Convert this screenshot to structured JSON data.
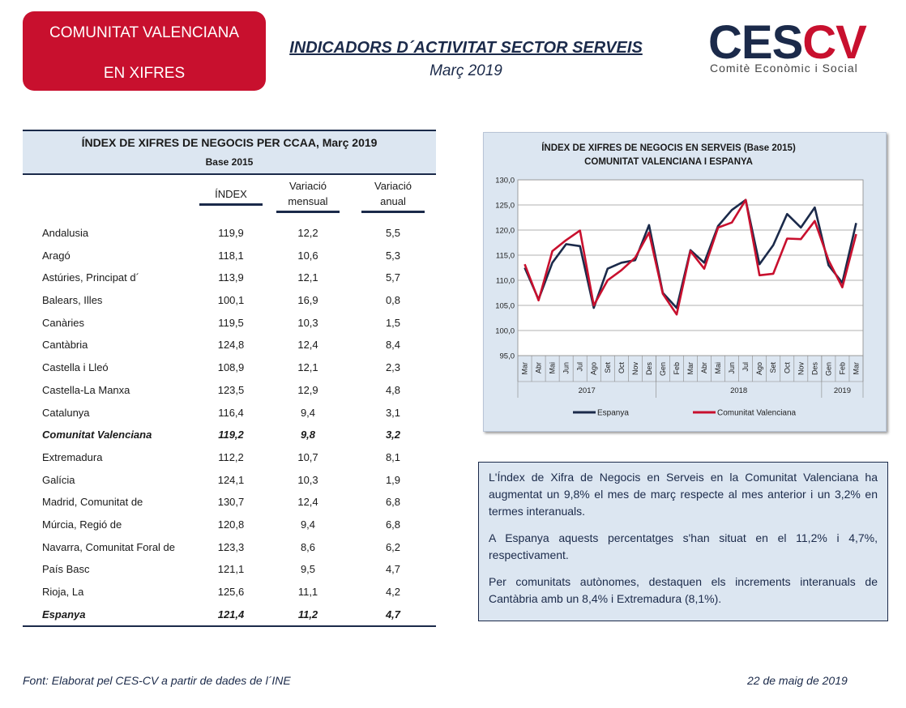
{
  "badge": {
    "line1": "COMUNITAT VALENCIANA",
    "line2": "EN XIFRES"
  },
  "header": {
    "title": "INDICADORS D´ACTIVITAT SECTOR SERVEIS",
    "subtitle": "Març 2019"
  },
  "logo": {
    "ces": "CES",
    "cv": "CV",
    "subtitle": "Comitè Econòmic i Social"
  },
  "table": {
    "title": "ÍNDEX DE XIFRES DE NEGOCIS PER CCAA, Març 2019",
    "base": "Base 2015",
    "col_index": "ÍNDEX",
    "col_mensual_1": "Variació",
    "col_mensual_2": "mensual",
    "col_anual_1": "Variació",
    "col_anual_2": "anual",
    "rows": [
      {
        "name": "Andalusia",
        "index": "119,9",
        "mensual": "12,2",
        "anual": "5,5"
      },
      {
        "name": "Aragó",
        "index": "118,1",
        "mensual": "10,6",
        "anual": "5,3"
      },
      {
        "name": "Astúries, Principat d´",
        "index": "113,9",
        "mensual": "12,1",
        "anual": "5,7"
      },
      {
        "name": "Balears, Illes",
        "index": "100,1",
        "mensual": "16,9",
        "anual": "0,8"
      },
      {
        "name": "Canàries",
        "index": "119,5",
        "mensual": "10,3",
        "anual": "1,5"
      },
      {
        "name": "Cantàbria",
        "index": "124,8",
        "mensual": "12,4",
        "anual": "8,4"
      },
      {
        "name": "Castella i Lleó",
        "index": "108,9",
        "mensual": "12,1",
        "anual": "2,3"
      },
      {
        "name": "Castella-La Manxa",
        "index": "123,5",
        "mensual": "12,9",
        "anual": "4,8"
      },
      {
        "name": "Catalunya",
        "index": "116,4",
        "mensual": "9,4",
        "anual": "3,1"
      },
      {
        "name": "Comunitat Valenciana",
        "index": "119,2",
        "mensual": "9,8",
        "anual": "3,2",
        "bold": true
      },
      {
        "name": "Extremadura",
        "index": "112,2",
        "mensual": "10,7",
        "anual": "8,1"
      },
      {
        "name": "Galícia",
        "index": "124,1",
        "mensual": "10,3",
        "anual": "1,9"
      },
      {
        "name": "Madrid, Comunitat de",
        "index": "130,7",
        "mensual": "12,4",
        "anual": "6,8"
      },
      {
        "name": "Múrcia, Regió de",
        "index": "120,8",
        "mensual": "9,4",
        "anual": "6,8"
      },
      {
        "name": "Navarra, Comunitat Foral de",
        "index": "123,3",
        "mensual": "8,6",
        "anual": "6,2"
      },
      {
        "name": "País Basc",
        "index": "121,1",
        "mensual": "9,5",
        "anual": "4,7"
      },
      {
        "name": "Rioja, La",
        "index": "125,6",
        "mensual": "11,1",
        "anual": "4,2"
      },
      {
        "name": "Espanya",
        "index": "121,4",
        "mensual": "11,2",
        "anual": "4,7",
        "bold": true
      }
    ]
  },
  "chart_data": {
    "type": "line",
    "title": "ÍNDEX DE XIFRES DE NEGOCIS EN SERVEIS (Base 2015)",
    "subtitle": "COMUNITAT VALENCIANA I ESPANYA",
    "categories": [
      "Mar",
      "Abr",
      "Mai",
      "Jun",
      "Jul",
      "Ago",
      "Set",
      "Oct",
      "Nov",
      "Des",
      "Gen",
      "Feb",
      "Mar",
      "Abr",
      "Mai",
      "Jun",
      "Jul",
      "Ago",
      "Set",
      "Oct",
      "Nov",
      "Des",
      "Gen",
      "Feb",
      "Mar"
    ],
    "year_labels": [
      "2017",
      "2018",
      "2019"
    ],
    "year_spans": [
      [
        0,
        9
      ],
      [
        10,
        21
      ],
      [
        22,
        24
      ]
    ],
    "ylim": [
      95.0,
      130.0
    ],
    "yticks": [
      "95,0",
      "100,0",
      "105,0",
      "110,0",
      "115,0",
      "120,0",
      "125,0",
      "130,0"
    ],
    "ytick_values": [
      95,
      100,
      105,
      110,
      115,
      120,
      125,
      130
    ],
    "series": [
      {
        "name": "Espanya",
        "color": "#1b2a4a",
        "values": [
          112.5,
          106.2,
          113.5,
          117.2,
          116.8,
          104.5,
          112.3,
          113.5,
          114.0,
          121.0,
          107.5,
          104.5,
          116.0,
          113.5,
          120.8,
          124.0,
          126.0,
          113.2,
          117.0,
          123.2,
          120.5,
          124.5,
          113.0,
          109.5,
          121.4
        ]
      },
      {
        "name": "Comunitat Valenciana",
        "color": "#c8102e",
        "values": [
          113.2,
          106.0,
          115.8,
          118.0,
          119.9,
          105.0,
          110.0,
          112.0,
          114.5,
          119.5,
          107.3,
          103.2,
          115.8,
          112.3,
          120.5,
          121.5,
          126.0,
          111.0,
          111.3,
          118.3,
          118.2,
          121.8,
          114.0,
          108.6,
          119.2
        ]
      }
    ]
  },
  "summary": {
    "p1": "L'Índex de Xifra de Negocis en Serveis en la Comunitat Valenciana ha augmentat un 9,8% el mes de març respecte al mes anterior i un 3,2% en termes interanuals.",
    "p2": "A Espanya aquests percentatges s'han situat en el 11,2% i 4,7%, respectivament.",
    "p3": "Per comunitats autònomes, destaquen els increments interanuals de Cantàbria amb un 8,4% i Extremadura (8,1%)."
  },
  "footer": {
    "source": "Font: Elaborat pel CES-CV a partir de dades de l´INE",
    "date": "22 de maig de 2019"
  }
}
